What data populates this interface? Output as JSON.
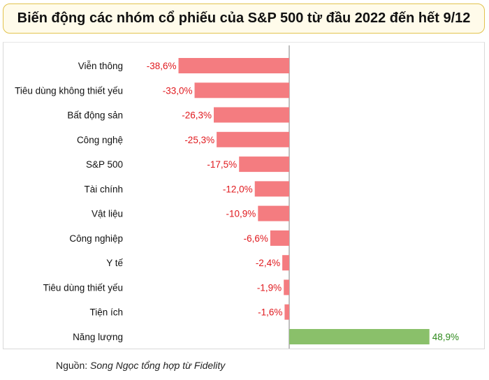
{
  "title": "Biến động các nhóm cổ phiếu của S&P 500 từ đầu 2022 đến hết 9/12",
  "source": {
    "prefix": "Nguồn:",
    "text": "Song Ngọc tổng hợp từ Fidelity"
  },
  "colors": {
    "negative_bar": "#f47c80",
    "positive_bar": "#8ac06a",
    "negative_label": "#e0191e",
    "positive_label": "#2f8a1d",
    "title_border": "#e2c34d",
    "title_bg": "#fffbea"
  },
  "chart_data": {
    "type": "bar",
    "orientation": "horizontal",
    "categories": [
      "Viễn thông",
      "Tiêu dùng không thiết yếu",
      "Bất động sản",
      "Công nghệ",
      "S&P 500",
      "Tài chính",
      "Vật liệu",
      "Công nghiệp",
      "Y tế",
      "Tiêu dùng thiết yếu",
      "Tiện ích",
      "Năng lượng"
    ],
    "values": [
      -38.6,
      -33.0,
      -26.3,
      -25.3,
      -17.5,
      -12.0,
      -10.9,
      -6.6,
      -2.4,
      -1.9,
      -1.6,
      48.9
    ],
    "value_labels": [
      "-38,6%",
      "-33,0%",
      "-26,3%",
      "-25,3%",
      "-17,5%",
      "-12,0%",
      "-10,9%",
      "-6,6%",
      "-2,4%",
      "-1,9%",
      "-1,6%",
      "48,9%"
    ],
    "unit": "%",
    "xlim": [
      -39.5,
      48.9
    ],
    "grid": false,
    "legend": "none"
  }
}
